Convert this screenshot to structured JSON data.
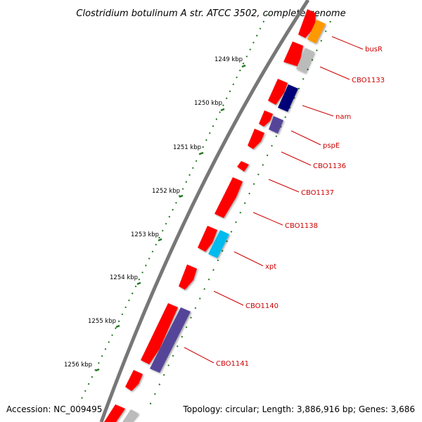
{
  "title": "Clostridium botulinum A str. ATCC 3502, complete genome",
  "accession": "Accession: NC_009495",
  "topology": "Topology: circular; Length: 3,886,916 bp; Genes: 3,686",
  "kbp_labels": [
    "1249 kbp",
    "1250 kbp",
    "1251 kbp",
    "1252 kbp",
    "1253 kbp",
    "1254 kbp",
    "1255 kbp",
    "1256 kbp"
  ],
  "gene_labels": [
    "busR",
    "CBO1133",
    "nam",
    "pspE",
    "CBO1136",
    "CBO1137",
    "CBO1138",
    "xpt",
    "CBO1140",
    "CBO1141"
  ],
  "colors": {
    "backbone": "#777777",
    "forward_gene": "#ff0000",
    "orange_feature": "#ff9900",
    "gray_feature": "#bbbbbb",
    "navy_feature": "#000077",
    "purple_feature": "#554499",
    "cyan_feature": "#00bbee",
    "tick": "#227722",
    "label": "#cc0000"
  }
}
